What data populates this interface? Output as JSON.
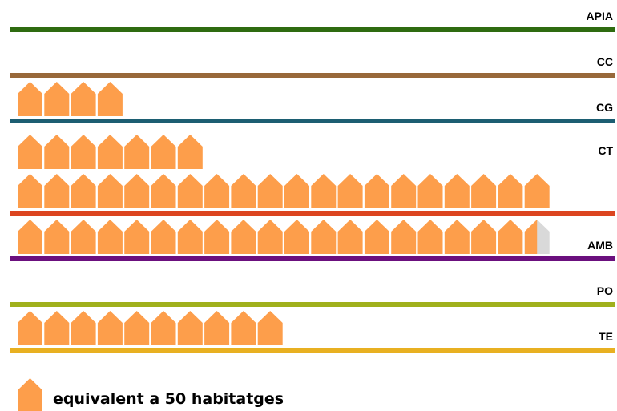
{
  "chart_data": {
    "type": "pictogram",
    "categories": [
      "APIA",
      "CC",
      "CG",
      "CT",
      "AMB",
      "PO",
      "TE"
    ],
    "values": [
      0,
      0,
      4,
      27,
      19.5,
      0,
      10
    ],
    "line_colors": [
      "#2e6b10",
      "#98683a",
      "#1c5e72",
      "#dc4520",
      "#6b0f7e",
      "#a0b01c",
      "#e8b021"
    ],
    "icon_color": "#fd9e4b",
    "empty_color": "#d9d9d9",
    "icons_per_row": 20,
    "legend_label": "equivalent a 50 habitatges"
  }
}
